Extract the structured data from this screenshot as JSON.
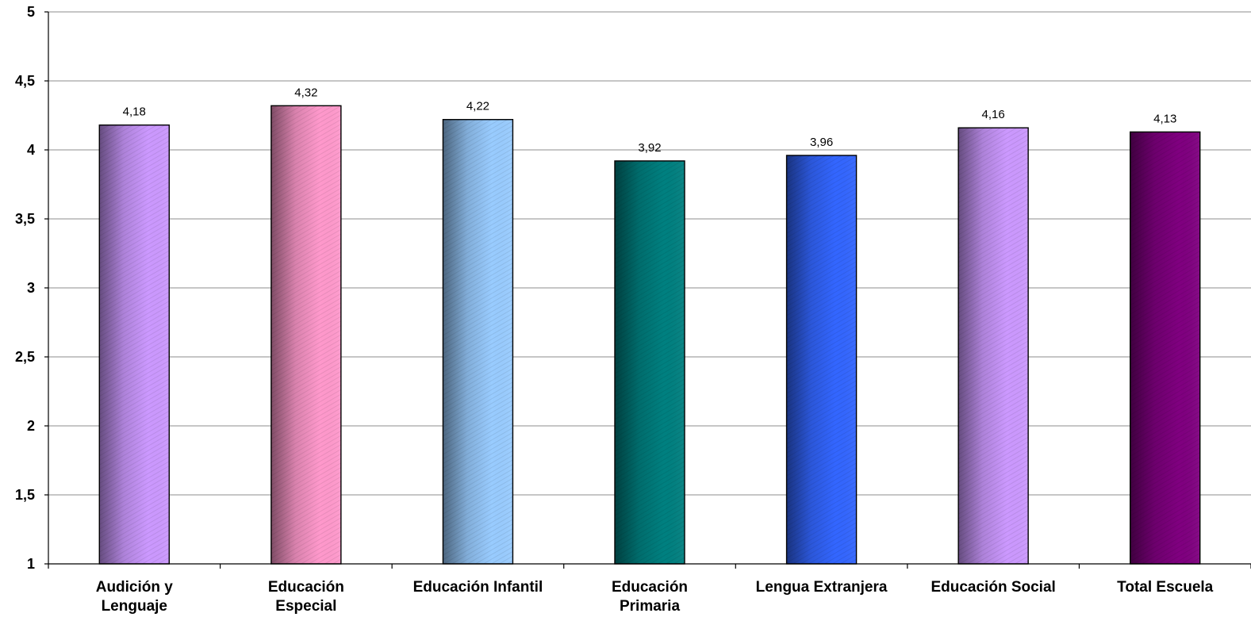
{
  "chart_data": {
    "type": "bar",
    "categories": [
      [
        "Audición y",
        "Lenguaje"
      ],
      [
        "Educación",
        "Especial"
      ],
      [
        "Educación Infantil"
      ],
      [
        "Educación",
        "Primaria"
      ],
      [
        "Lengua Extranjera"
      ],
      [
        "Educación Social"
      ],
      [
        "Total Escuela"
      ]
    ],
    "values": [
      4.18,
      4.32,
      4.22,
      3.92,
      3.96,
      4.16,
      4.13
    ],
    "value_labels": [
      "4,18",
      "4,32",
      "4,22",
      "3,92",
      "3,96",
      "4,16",
      "4,13"
    ],
    "bar_colors": [
      "#cc99ff",
      "#ff99cc",
      "#99ccff",
      "#008080",
      "#3366ff",
      "#cc99ff",
      "#800080"
    ],
    "ylim": [
      1,
      5
    ],
    "yticks": [
      1,
      1.5,
      2,
      2.5,
      3,
      3.5,
      4,
      4.5,
      5
    ],
    "ytick_labels": [
      "1",
      "1,5",
      "2",
      "2,5",
      "3",
      "3,5",
      "4",
      "4,5",
      "5"
    ],
    "grid": true,
    "title": "",
    "xlabel": "",
    "ylabel": ""
  }
}
